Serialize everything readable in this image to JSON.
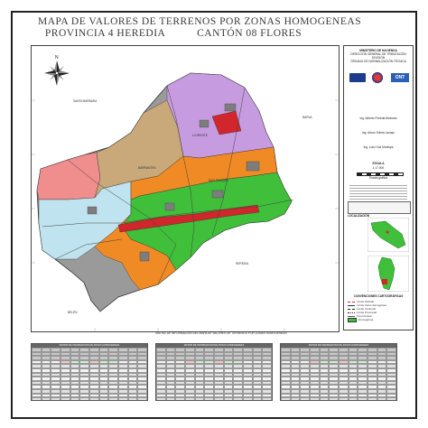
{
  "title": {
    "line1": "MAPA DE VALORES DE TERRENOS POR ZONAS HOMOGENEAS",
    "line2_left": "PROVINCIA  4 HEREDIA",
    "line2_right": "CANTÓN 08  FLORES"
  },
  "map": {
    "labels": {
      "santa_barbara": "SANTA BARBARA",
      "barva": "BARVA",
      "belen": "BELÉN",
      "heredia": "HEREDIA",
      "san_joaquin": "SAN JOAQUÍN",
      "llorente": "LLORENTE",
      "barrantes": "BARRANTES"
    },
    "compass_label": "N",
    "zone_colors": {
      "pink": "#f08d8d",
      "tan": "#c9a879",
      "purple": "#c79be0",
      "orange": "#f08a24",
      "green": "#3fbf3a",
      "lightblue": "#bfe3ef",
      "red": "#d1262b",
      "gray": "#9a9a9a"
    }
  },
  "side_panel": {
    "ministry": "MINISTERIO DE HACIENDA",
    "direction": "DIRECCIÓN GENERAL DE TRIBUTACIÓN",
    "division": "DIVISIÓN",
    "organ": "ÓRGANO DE NORMALIZACIÓN TÉCNICA",
    "sig1": "Ing. Alberto Poveda Alvarado",
    "sig2": "Ing. Arturo Solera Lacayo",
    "sig3": "Ing. Luis Cruz Montoya",
    "scale_label": "ESCALA",
    "scale_value": "1:17.000",
    "scale_bar_label": "Escala gráfica",
    "location_label": "LOCALIZACIÓN",
    "legend_label": "CONVENCIONES CARTOGRÁFICAS",
    "legend_items": [
      "Límite Distrital",
      "Límite Zona Homogénea",
      "Límite Cantonal",
      "Límite Provincial",
      "Vía principal",
      "Homogénea"
    ]
  },
  "bottom": {
    "title": "MATRIZ DE INFORMACIÓN DEL MAPA DE VALORES DE TERRENOS POR ZONAS HOMOGÉNEAS",
    "tables": [
      {
        "head": "MATRIZ DE INFORMACIÓN DE ZONAS HOMOGÉNEAS"
      },
      {
        "head": "MATRIZ DE INFORMACIÓN DE ZONAS HOMOGÉNEAS"
      },
      {
        "head": "MATRIZ DE INFORMACIÓN DE ZONAS HOMOGÉNEAS"
      }
    ]
  }
}
